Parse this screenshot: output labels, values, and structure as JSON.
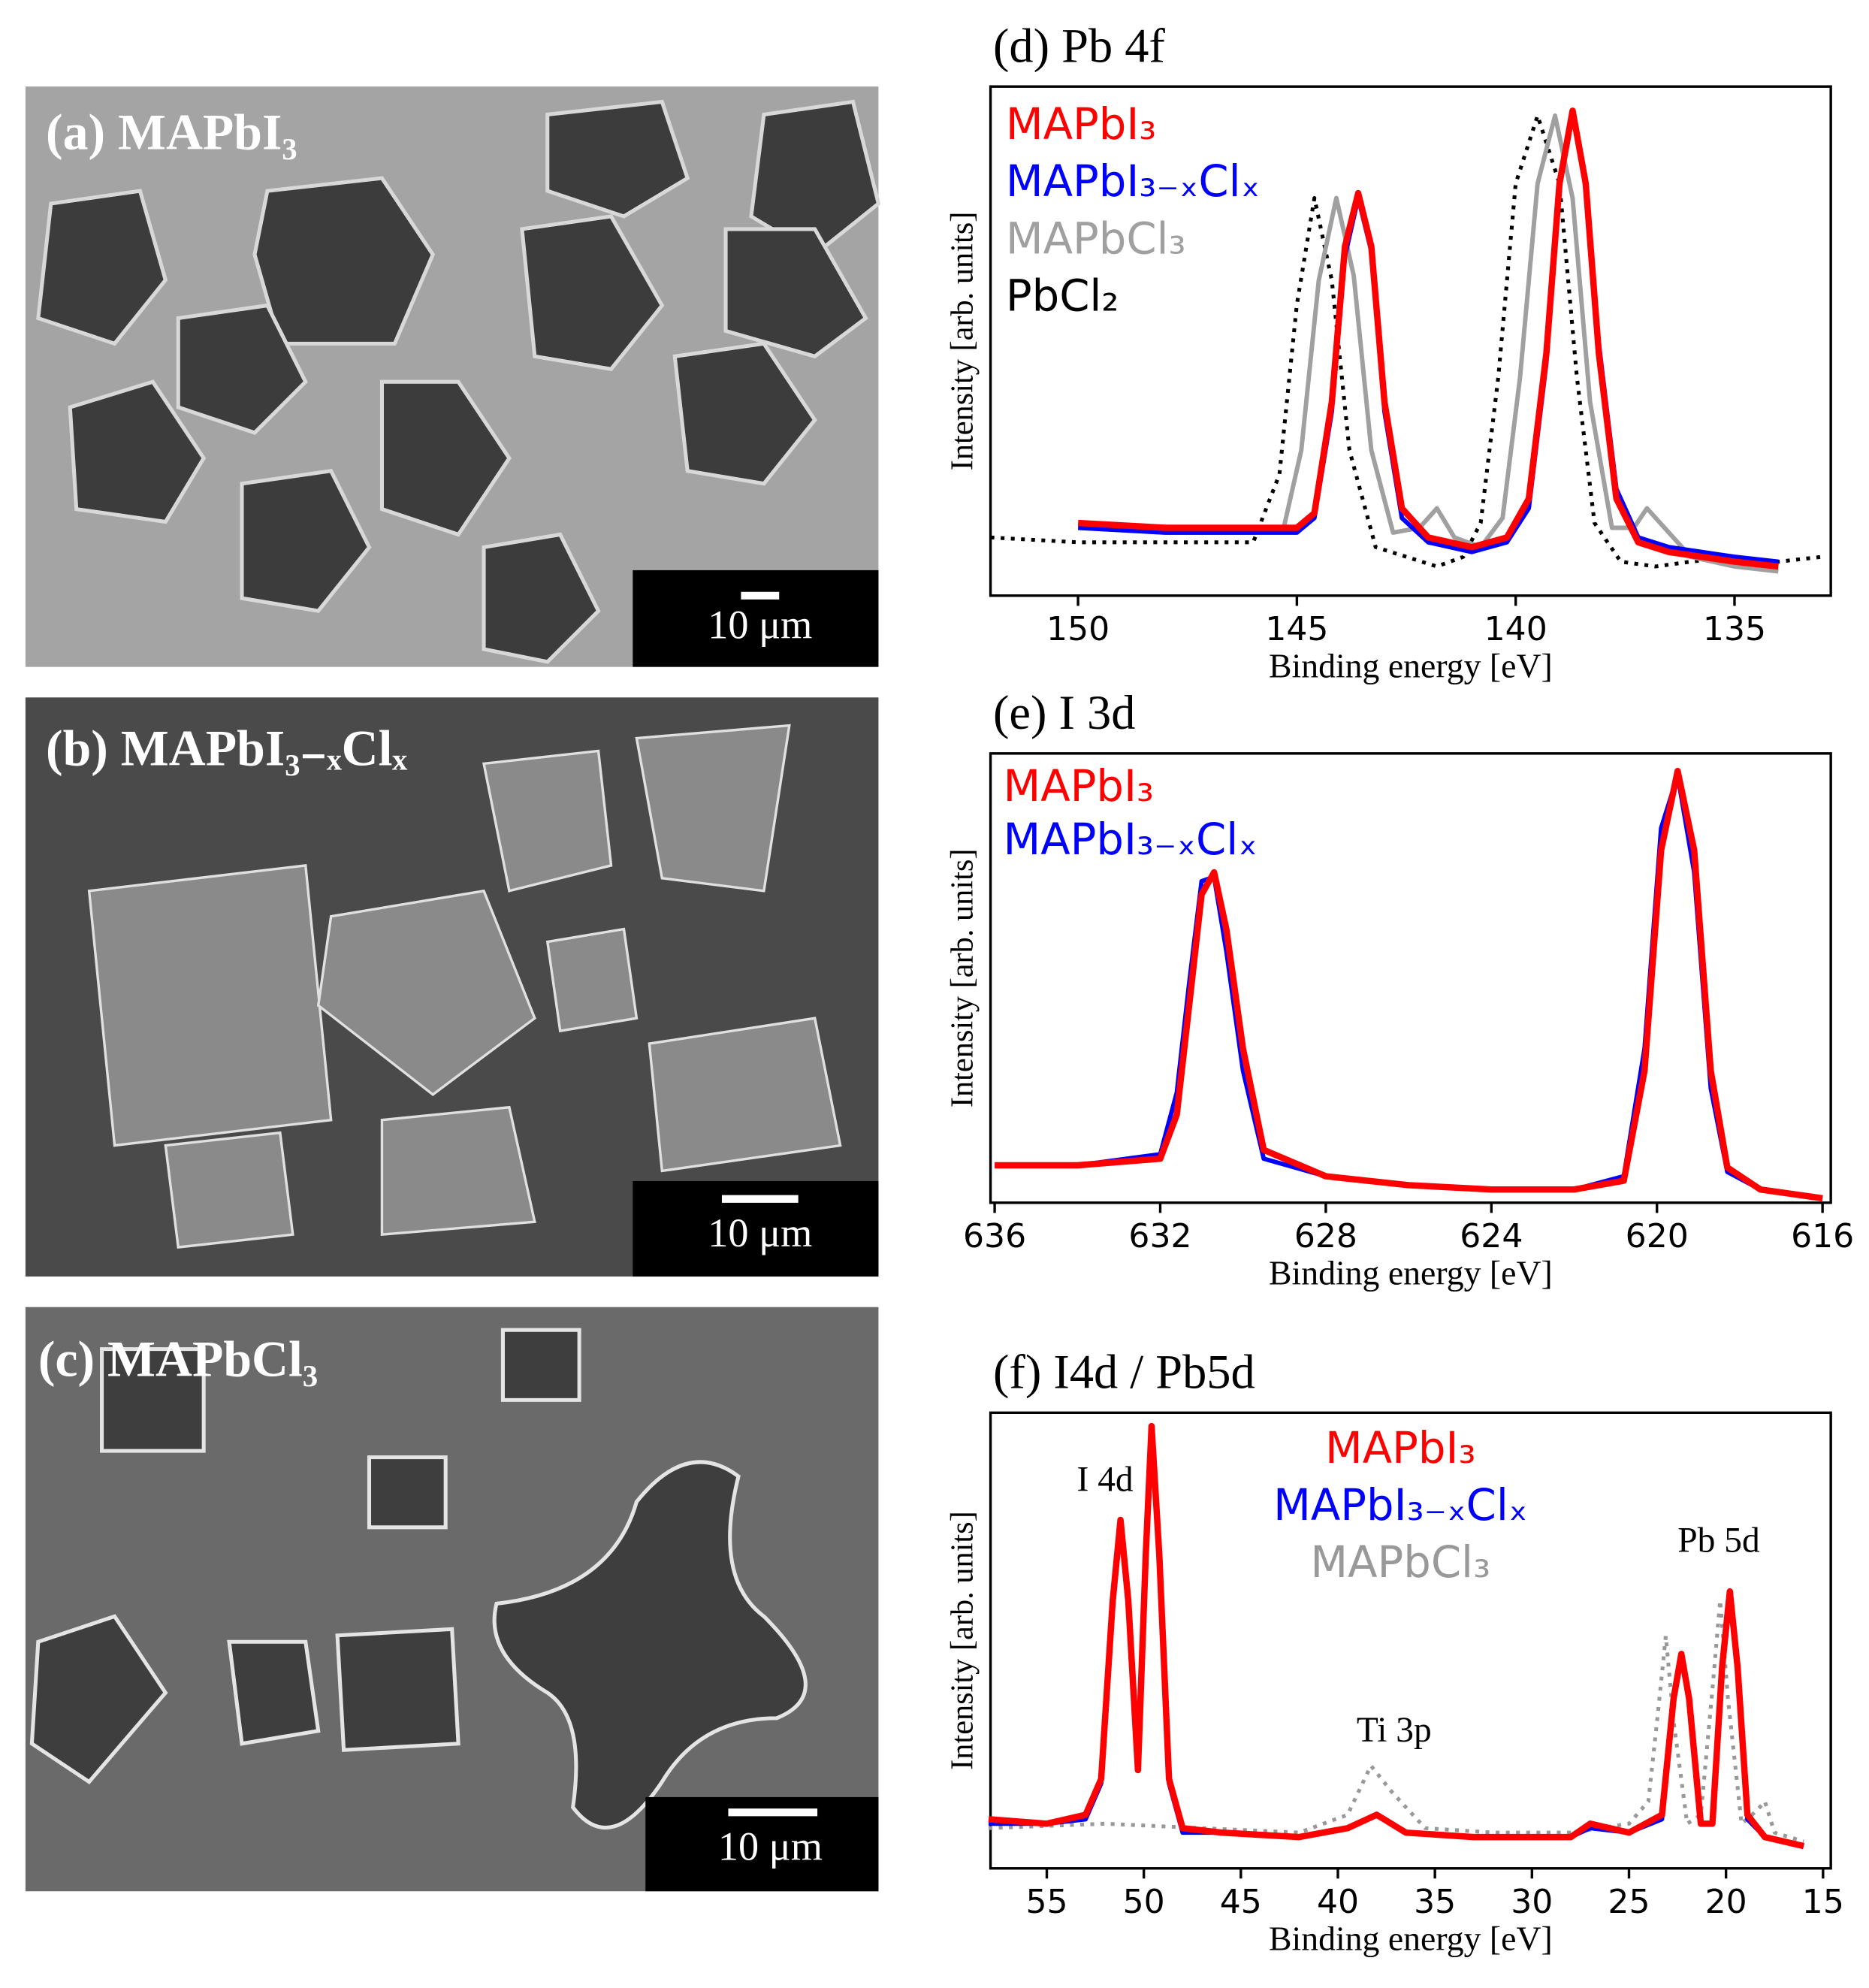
{
  "images": [
    {
      "label": "(a)  MAPbI₃",
      "scale_bar": "10 μm"
    },
    {
      "label": "(b)  MAPbI₃₋ₓClₓ",
      "scale_bar": "10 μm"
    },
    {
      "label": "(c)  MAPbCl₃",
      "scale_bar": "10 μm"
    }
  ],
  "chart_data": [
    {
      "type": "line",
      "title": "(d) Pb 4f",
      "xlabel": "Binding energy [eV]",
      "ylabel": "Intensity [arb. units]",
      "xlim": [
        152,
        132.8
      ],
      "ylim": [
        0,
        1.05
      ],
      "xticks": [
        150,
        145,
        140,
        135
      ],
      "legend": "top-left",
      "series": [
        {
          "name": "MAPbI₃",
          "color": "#ff0000",
          "style": "solid",
          "x": [
            150,
            148,
            146,
            145,
            144.6,
            144.2,
            143.9,
            143.6,
            143.3,
            143,
            142.6,
            142,
            141,
            140.2,
            139.7,
            139.3,
            139,
            138.7,
            138.4,
            138.1,
            137.7,
            137.2,
            136.5,
            135,
            134
          ],
          "values": [
            0.15,
            0.14,
            0.14,
            0.14,
            0.17,
            0.4,
            0.72,
            0.83,
            0.72,
            0.4,
            0.18,
            0.12,
            0.1,
            0.12,
            0.2,
            0.5,
            0.85,
            1.0,
            0.85,
            0.5,
            0.2,
            0.11,
            0.09,
            0.07,
            0.06
          ]
        },
        {
          "name": "MAPbI₃₋ₓClₓ",
          "color": "#0000ff",
          "style": "solid",
          "x": [
            150,
            148,
            146,
            145,
            144.6,
            144.2,
            143.9,
            143.6,
            143.3,
            143,
            142.6,
            142,
            141,
            140.2,
            139.7,
            139.3,
            139,
            138.7,
            138.4,
            138.1,
            137.7,
            137.2,
            136.5,
            135,
            134
          ],
          "values": [
            0.14,
            0.13,
            0.13,
            0.13,
            0.16,
            0.38,
            0.7,
            0.82,
            0.71,
            0.38,
            0.16,
            0.11,
            0.09,
            0.11,
            0.18,
            0.48,
            0.84,
            0.99,
            0.86,
            0.52,
            0.22,
            0.12,
            0.1,
            0.08,
            0.07
          ]
        },
        {
          "name": "MAPbCl₃",
          "color": "#a0a0a0",
          "style": "solid",
          "x": [
            150,
            148,
            146,
            145.3,
            144.9,
            144.5,
            144.1,
            143.7,
            143.3,
            142.8,
            142.2,
            141.8,
            141.4,
            140.8,
            140.3,
            139.9,
            139.5,
            139.1,
            138.7,
            138.3,
            137.8,
            137.3,
            137,
            136.6,
            136,
            135,
            134
          ],
          "values": [
            0.14,
            0.13,
            0.13,
            0.14,
            0.3,
            0.65,
            0.82,
            0.66,
            0.3,
            0.13,
            0.14,
            0.18,
            0.12,
            0.1,
            0.16,
            0.45,
            0.85,
            0.99,
            0.82,
            0.4,
            0.14,
            0.14,
            0.18,
            0.14,
            0.08,
            0.06,
            0.05
          ]
        },
        {
          "name": "PbCl₂",
          "color": "#000000",
          "style": "dotted",
          "x": [
            152,
            150,
            148,
            146,
            145.4,
            145,
            144.6,
            144.2,
            143.8,
            143.2,
            142.5,
            141.8,
            141.2,
            140.8,
            140.4,
            140,
            139.5,
            139,
            138.6,
            138.2,
            137.6,
            136.8,
            136,
            135,
            134,
            133
          ],
          "values": [
            0.12,
            0.11,
            0.11,
            0.11,
            0.25,
            0.6,
            0.82,
            0.65,
            0.3,
            0.1,
            0.08,
            0.06,
            0.08,
            0.15,
            0.45,
            0.85,
            0.99,
            0.85,
            0.45,
            0.15,
            0.07,
            0.06,
            0.07,
            0.08,
            0.07,
            0.08
          ]
        }
      ]
    },
    {
      "type": "line",
      "title": "(e) I 3d",
      "xlabel": "Binding energy [eV]",
      "ylabel": "Intensity [arb. units]",
      "xlim": [
        636.1,
        615.8
      ],
      "ylim": [
        0,
        1.02
      ],
      "xticks": [
        636,
        632,
        628,
        624,
        620,
        616
      ],
      "legend": "top-left",
      "series": [
        {
          "name": "MAPbI₃",
          "color": "#ff0000",
          "style": "solid",
          "x": [
            636,
            634,
            632,
            631.6,
            631.3,
            631,
            630.7,
            630.4,
            630,
            629.5,
            628,
            626,
            624,
            622,
            620.8,
            620.3,
            619.9,
            619.5,
            619.1,
            618.7,
            618.3,
            617.5,
            616
          ],
          "values": [
            0.085,
            0.085,
            0.1,
            0.2,
            0.45,
            0.7,
            0.75,
            0.62,
            0.35,
            0.12,
            0.06,
            0.04,
            0.03,
            0.03,
            0.05,
            0.3,
            0.8,
            0.98,
            0.8,
            0.3,
            0.08,
            0.03,
            0.01
          ]
        },
        {
          "name": "MAPbI₃₋ₓClₓ",
          "color": "#0000ff",
          "style": "solid",
          "x": [
            636,
            634,
            632,
            631.6,
            631.3,
            631,
            630.7,
            630.4,
            630,
            629.5,
            628,
            626,
            624,
            622,
            620.8,
            620.3,
            619.9,
            619.5,
            619.1,
            618.7,
            618.3,
            617.5,
            616
          ],
          "values": [
            0.085,
            0.085,
            0.11,
            0.25,
            0.5,
            0.73,
            0.74,
            0.57,
            0.3,
            0.1,
            0.06,
            0.04,
            0.03,
            0.03,
            0.06,
            0.35,
            0.85,
            0.97,
            0.75,
            0.26,
            0.07,
            0.03,
            0.01
          ]
        }
      ]
    },
    {
      "type": "line",
      "title": "(f) I4d / Pb5d",
      "xlabel": "Binding energy [eV]",
      "ylabel": "Intensity [arb. units]",
      "xlim": [
        57.9,
        14.6
      ],
      "ylim": [
        0,
        1.02
      ],
      "xticks": [
        55,
        50,
        45,
        40,
        35,
        30,
        25,
        20,
        15
      ],
      "legend": "top-center",
      "annotations": [
        "I 4d",
        "Ti 3p",
        "Pb 5d"
      ],
      "series": [
        {
          "name": "MAPbI₃",
          "color": "#ff0000",
          "style": "solid",
          "x": [
            58,
            55,
            53,
            52.2,
            51.6,
            51.2,
            50.8,
            50.3,
            49.9,
            49.6,
            49.2,
            48.7,
            48,
            46,
            42,
            39.5,
            38,
            36.5,
            33,
            28,
            27,
            25,
            23.3,
            22.7,
            22.3,
            21.9,
            21.3,
            20.7,
            20.2,
            19.8,
            19.4,
            18.9,
            18,
            16
          ],
          "values": [
            0.11,
            0.1,
            0.12,
            0.2,
            0.6,
            0.78,
            0.6,
            0.22,
            0.7,
            0.99,
            0.7,
            0.2,
            0.09,
            0.08,
            0.07,
            0.09,
            0.12,
            0.08,
            0.07,
            0.07,
            0.1,
            0.08,
            0.12,
            0.38,
            0.48,
            0.38,
            0.1,
            0.1,
            0.45,
            0.62,
            0.45,
            0.12,
            0.07,
            0.05
          ]
        },
        {
          "name": "MAPbI₃₋ₓClₓ",
          "color": "#0000ff",
          "style": "solid",
          "x": [
            58,
            55,
            53,
            52.2,
            51.6,
            51.2,
            50.8,
            50.3,
            49.9,
            49.6,
            49.2,
            48.7,
            48,
            46,
            42,
            39.5,
            38,
            36.5,
            33,
            28,
            27,
            25,
            23.3,
            22.7,
            22.3,
            21.9,
            21.3,
            20.7,
            20.2,
            19.8,
            19.4,
            18.9,
            18,
            16
          ],
          "values": [
            0.1,
            0.1,
            0.11,
            0.19,
            0.58,
            0.76,
            0.58,
            0.23,
            0.68,
            0.97,
            0.68,
            0.19,
            0.08,
            0.08,
            0.07,
            0.09,
            0.12,
            0.08,
            0.07,
            0.07,
            0.09,
            0.08,
            0.11,
            0.37,
            0.47,
            0.37,
            0.1,
            0.1,
            0.44,
            0.6,
            0.44,
            0.11,
            0.07,
            0.05
          ]
        },
        {
          "name": "MAPbCl₃",
          "color": "#999999",
          "style": "dotted",
          "x": [
            58,
            52,
            47,
            42,
            39.5,
            38.3,
            37.2,
            35.5,
            32,
            28,
            25,
            24,
            23.5,
            23.1,
            22.7,
            22,
            21.3,
            20.7,
            20.3,
            19.9,
            19.2,
            18.4,
            18,
            17.5,
            16
          ],
          "values": [
            0.09,
            0.1,
            0.09,
            0.08,
            0.12,
            0.23,
            0.17,
            0.09,
            0.08,
            0.08,
            0.1,
            0.15,
            0.35,
            0.52,
            0.33,
            0.1,
            0.12,
            0.4,
            0.6,
            0.38,
            0.1,
            0.13,
            0.15,
            0.08,
            0.06
          ]
        }
      ]
    }
  ]
}
